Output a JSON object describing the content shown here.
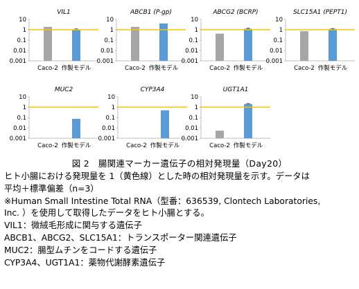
{
  "chart_data": [
    {
      "type": "bar",
      "title": "VIL1",
      "categories": [
        "Caco-2",
        "作製モデル"
      ],
      "values": [
        1.9,
        1.0
      ],
      "error": [
        0,
        0.22
      ],
      "ylim": [
        0.001,
        10
      ],
      "yscale": "log",
      "yticks": [
        "10",
        "1",
        "0.1",
        "0.01",
        "0.001"
      ],
      "reference_line": 1,
      "colors": [
        "#a6a6a6",
        "#5b9bd5"
      ]
    },
    {
      "type": "bar",
      "title": "ABCB1 (P-gp)",
      "categories": [
        "Caco-2",
        "作製モデル"
      ],
      "values": [
        1.9,
        4.0
      ],
      "error": [
        0,
        0
      ],
      "ylim": [
        0.001,
        10
      ],
      "yscale": "log",
      "yticks": [
        "10",
        "1",
        "0.1",
        "0.01",
        "0.001"
      ],
      "reference_line": 1,
      "colors": [
        "#a6a6a6",
        "#5b9bd5"
      ]
    },
    {
      "type": "bar",
      "title": "ABCG2 (BCRP)",
      "categories": [
        "Caco-2",
        "作製モデル"
      ],
      "values": [
        0.42,
        1.25
      ],
      "error": [
        0,
        0.15
      ],
      "ylim": [
        0.001,
        10
      ],
      "yscale": "log",
      "yticks": [
        "10",
        "1",
        "0.1",
        "0.01",
        "0.001"
      ],
      "reference_line": 1,
      "colors": [
        "#a6a6a6",
        "#5b9bd5"
      ]
    },
    {
      "type": "bar",
      "title": "SLC15A1 (PEPT1)",
      "categories": [
        "Caco-2",
        "作製モデル"
      ],
      "values": [
        0.72,
        1.2
      ],
      "error": [
        0,
        0.1
      ],
      "ylim": [
        0.001,
        10
      ],
      "yscale": "log",
      "yticks": [
        "10",
        "1",
        "0.1",
        "0.01",
        "0.001"
      ],
      "reference_line": 1,
      "colors": [
        "#a6a6a6",
        "#5b9bd5"
      ]
    },
    {
      "type": "bar",
      "title": "MUC2",
      "categories": [
        "Caco-2",
        "作製モデル"
      ],
      "values": [
        null,
        0.075
      ],
      "error": [
        0,
        0
      ],
      "ylim": [
        0.001,
        10
      ],
      "yscale": "log",
      "yticks": [
        "10",
        "1",
        "0.1",
        "0.01",
        "0.001"
      ],
      "reference_line": 1,
      "colors": [
        "#a6a6a6",
        "#5b9bd5"
      ]
    },
    {
      "type": "bar",
      "title": "CYP3A4",
      "categories": [
        "Caco-2",
        "作製モデル"
      ],
      "values": [
        null,
        0.5
      ],
      "error": [
        0,
        0
      ],
      "ylim": [
        0.001,
        10
      ],
      "yscale": "log",
      "yticks": [
        "10",
        "1",
        "0.1",
        "0.01",
        "0.001"
      ],
      "reference_line": 1,
      "colors": [
        "#a6a6a6",
        "#5b9bd5"
      ]
    },
    {
      "type": "bar",
      "title": "UGT1A1",
      "categories": [
        "Caco-2",
        "作製モデル"
      ],
      "values": [
        0.0055,
        2.0
      ],
      "error": [
        0,
        0.2
      ],
      "ylim": [
        0.001,
        10
      ],
      "yscale": "log",
      "yticks": [
        "10",
        "1",
        "0.1",
        "0.01",
        "0.001"
      ],
      "reference_line": 1,
      "colors": [
        "#a6a6a6",
        "#5b9bd5"
      ]
    }
  ],
  "reference_line_color": "#ffc000",
  "caption": "図 2　腸関連マーカー遺伝子の相対発現量（Day20）",
  "notes": [
    "ヒト小腸における発現量を 1（黄色線）とした時の相対発現量を示す。データは",
    "平均＋標準偏差（n=3）",
    "※Human Small Intestine Total RNA（型番：636539, Clontech Laboratories,",
    "Inc. ）を使用して取得したデータをヒト小腸とする。",
    "VIL1：微絨毛形成に関与する遺伝子",
    "ABCB1、ABCG2、SLC15A1：トランスポーター関連遺伝子",
    "MUC2：腸型ムチンをコードする遺伝子",
    "CYP3A4、UGT1A1：薬物代謝酵素遺伝子"
  ]
}
